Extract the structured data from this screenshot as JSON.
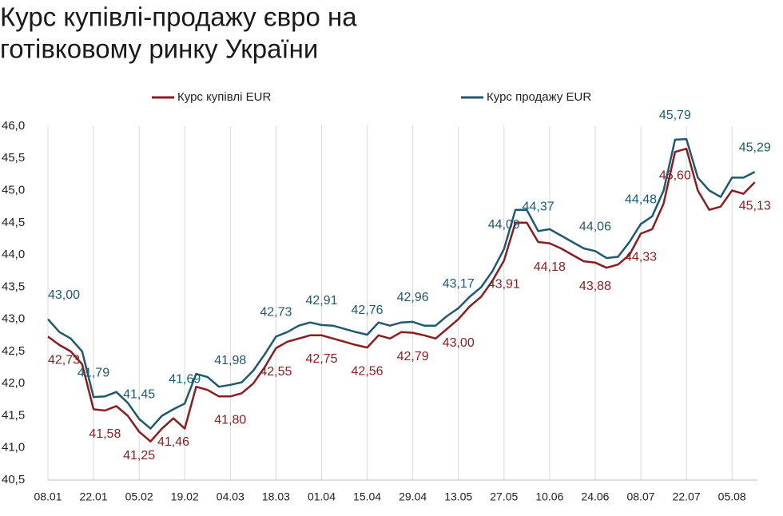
{
  "chart_data": {
    "type": "line",
    "title": [
      "Курс купівлі-продажу євро на",
      "готівковому ринку України"
    ],
    "categories": [
      "08.01",
      null,
      null,
      null,
      "22.01",
      null,
      null,
      null,
      "05.02",
      null,
      null,
      null,
      "19.02",
      null,
      null,
      null,
      "04.03",
      null,
      null,
      null,
      "18.03",
      null,
      null,
      null,
      "01.04",
      null,
      null,
      null,
      "15.04",
      null,
      null,
      null,
      "29.04",
      null,
      null,
      null,
      "13.05",
      null,
      null,
      null,
      "27.05",
      null,
      null,
      null,
      "10.06",
      null,
      null,
      null,
      "24.06",
      null,
      null,
      null,
      "08.07",
      null,
      null,
      null,
      "22.07",
      null,
      null,
      null,
      "05.08",
      null,
      null
    ],
    "series": [
      {
        "name": "Курс купівлі EUR",
        "color": "#8c1c1e",
        "values": [
          42.73,
          42.6,
          42.5,
          42.3,
          41.6,
          41.58,
          41.65,
          41.5,
          41.25,
          41.1,
          41.3,
          41.46,
          41.3,
          41.95,
          41.9,
          41.8,
          41.8,
          41.85,
          42.0,
          42.25,
          42.55,
          42.65,
          42.7,
          42.75,
          42.75,
          42.7,
          42.65,
          42.6,
          42.56,
          42.75,
          42.7,
          42.8,
          42.79,
          42.75,
          42.7,
          42.85,
          43.0,
          43.2,
          43.35,
          43.6,
          43.91,
          44.5,
          44.5,
          44.2,
          44.18,
          44.1,
          44.0,
          43.9,
          43.88,
          43.8,
          43.85,
          44.0,
          44.33,
          44.4,
          44.8,
          45.6,
          45.65,
          45.0,
          44.7,
          44.75,
          45.0,
          44.95,
          45.13
        ],
        "value_labels": [
          "42,73",
          null,
          null,
          null,
          null,
          "41,58",
          null,
          null,
          "41,25",
          null,
          null,
          "41,46",
          null,
          null,
          null,
          null,
          "41,80",
          null,
          null,
          null,
          "42,55",
          null,
          null,
          null,
          "42,75",
          null,
          null,
          null,
          "42,56",
          null,
          null,
          null,
          "42,79",
          null,
          null,
          null,
          "43,00",
          null,
          null,
          null,
          "43,91",
          null,
          null,
          null,
          "44,18",
          null,
          null,
          null,
          "43,88",
          null,
          null,
          null,
          "44,33",
          null,
          null,
          "45,60",
          null,
          null,
          null,
          null,
          null,
          null,
          "45,13"
        ]
      },
      {
        "name": "Курс продажу EUR",
        "color": "#1d5a72",
        "values": [
          43.0,
          42.8,
          42.7,
          42.5,
          41.79,
          41.8,
          41.87,
          41.7,
          41.45,
          41.3,
          41.5,
          41.6,
          41.69,
          42.15,
          42.1,
          41.95,
          41.98,
          42.02,
          42.2,
          42.45,
          42.73,
          42.8,
          42.9,
          42.95,
          42.91,
          42.9,
          42.85,
          42.8,
          42.76,
          42.95,
          42.9,
          42.95,
          42.96,
          42.9,
          42.9,
          43.05,
          43.17,
          43.35,
          43.5,
          43.75,
          44.09,
          44.7,
          44.7,
          44.37,
          44.4,
          44.3,
          44.2,
          44.1,
          44.06,
          43.95,
          43.97,
          44.2,
          44.48,
          44.6,
          45.0,
          45.79,
          45.8,
          45.2,
          45.0,
          44.9,
          45.2,
          45.2,
          45.29
        ],
        "value_labels": [
          "43,00",
          null,
          null,
          null,
          "41,79",
          null,
          null,
          null,
          "41,45",
          null,
          null,
          null,
          "41,69",
          null,
          null,
          null,
          "41,98",
          null,
          null,
          null,
          "42,73",
          null,
          null,
          null,
          "42,91",
          null,
          null,
          null,
          "42,76",
          null,
          null,
          null,
          "42,96",
          null,
          null,
          null,
          "43,17",
          null,
          null,
          null,
          "44,09",
          null,
          null,
          "44,37",
          null,
          null,
          null,
          null,
          "44,06",
          null,
          null,
          null,
          "44,48",
          null,
          null,
          "45,79",
          null,
          null,
          null,
          null,
          null,
          null,
          "45,29"
        ]
      }
    ],
    "ylim": [
      40.5,
      46.0
    ],
    "yticks": [
      {
        "value": 40.5,
        "label": "40,5"
      },
      {
        "value": 41.0,
        "label": "41,0"
      },
      {
        "value": 41.5,
        "label": "41,5"
      },
      {
        "value": 42.0,
        "label": "42,0"
      },
      {
        "value": 42.5,
        "label": "42,5"
      },
      {
        "value": 43.0,
        "label": "43,0"
      },
      {
        "value": 43.5,
        "label": "43,5"
      },
      {
        "value": 44.0,
        "label": "44,0"
      },
      {
        "value": 44.5,
        "label": "44,5"
      },
      {
        "value": 45.0,
        "label": "45,0"
      },
      {
        "value": 45.5,
        "label": "45,5"
      },
      {
        "value": 46.0,
        "label": "46,0"
      }
    ],
    "grid": "x",
    "legend": "top"
  }
}
